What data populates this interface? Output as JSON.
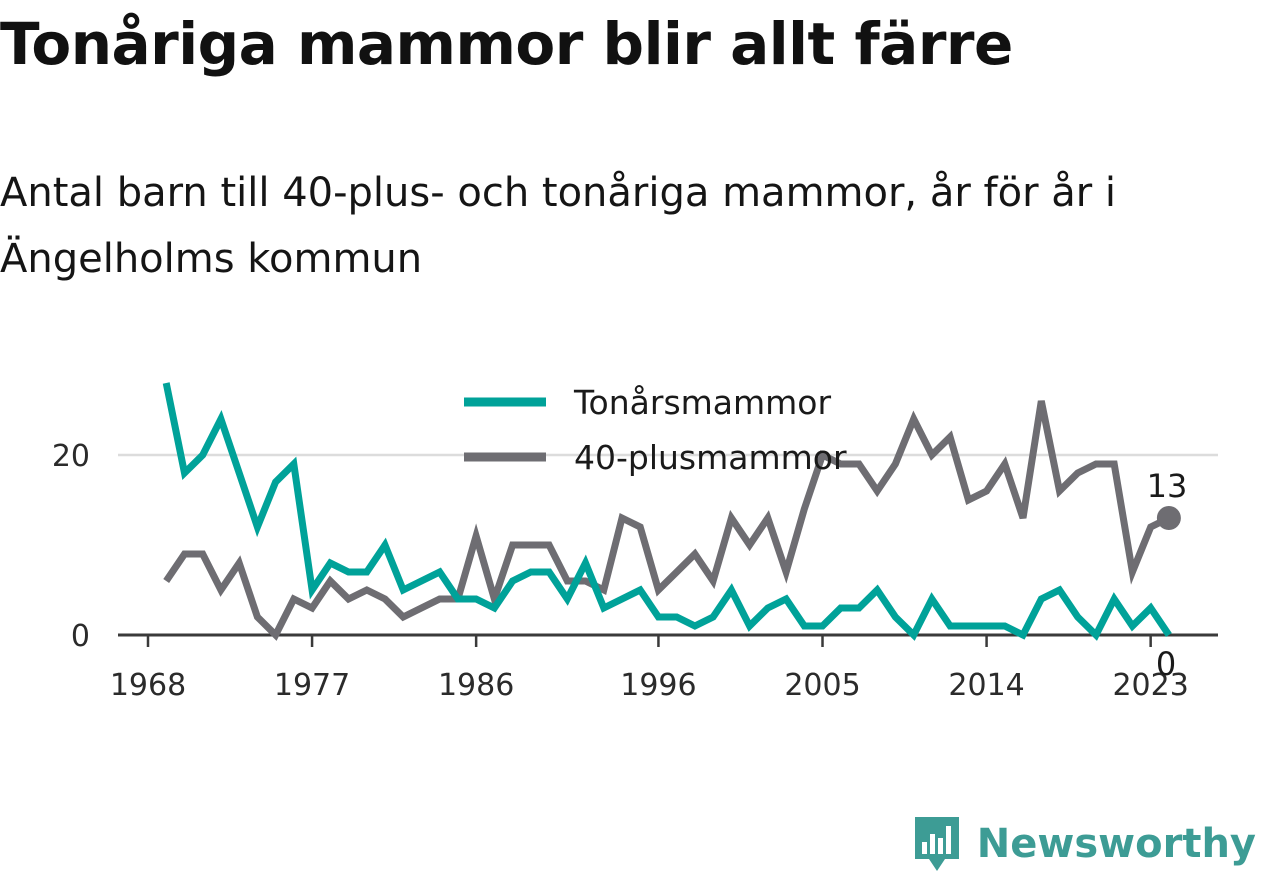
{
  "title": "Tonåriga mammor blir allt färre",
  "subtitle": "Antal barn till 40-plus- och tonåriga mammor, år för år i Ängelholms kommun",
  "brand": {
    "name": "Newsworthy"
  },
  "colors": {
    "teen": "#00a299",
    "forty": "#6e6d72",
    "grid": "#dcdcdc",
    "axis": "#3a3a3a",
    "brand": "#3d9c95"
  },
  "chart_data": {
    "type": "line",
    "x": [
      1969,
      1970,
      1971,
      1972,
      1973,
      1974,
      1975,
      1976,
      1977,
      1978,
      1979,
      1980,
      1981,
      1982,
      1983,
      1984,
      1985,
      1986,
      1987,
      1988,
      1989,
      1990,
      1991,
      1992,
      1993,
      1994,
      1995,
      1996,
      1997,
      1998,
      1999,
      2000,
      2001,
      2002,
      2003,
      2004,
      2005,
      2006,
      2007,
      2008,
      2009,
      2010,
      2011,
      2012,
      2013,
      2014,
      2015,
      2016,
      2017,
      2018,
      2019,
      2020,
      2021,
      2022,
      2023,
      2024
    ],
    "series": [
      {
        "name": "Tonårsmammor",
        "values": [
          28,
          18,
          20,
          24,
          18,
          12,
          17,
          19,
          5,
          8,
          7,
          7,
          10,
          5,
          6,
          7,
          4,
          4,
          3,
          6,
          7,
          7,
          4,
          8,
          3,
          4,
          5,
          2,
          2,
          1,
          2,
          5,
          1,
          3,
          4,
          1,
          1,
          3,
          3,
          5,
          2,
          0,
          4,
          1,
          1,
          1,
          1,
          0,
          4,
          5,
          2,
          0,
          4,
          1,
          3,
          0
        ]
      },
      {
        "name": "40-plusmammor",
        "values": [
          6,
          9,
          9,
          5,
          8,
          2,
          0,
          4,
          3,
          6,
          4,
          5,
          4,
          2,
          3,
          4,
          4,
          11,
          4,
          10,
          10,
          10,
          6,
          6,
          5,
          13,
          12,
          5,
          7,
          9,
          6,
          13,
          10,
          13,
          7,
          14,
          20,
          19,
          19,
          16,
          19,
          24,
          20,
          22,
          15,
          16,
          19,
          13,
          26,
          16,
          18,
          19,
          19,
          7,
          12,
          13
        ]
      }
    ],
    "x_ticks": [
      "1968",
      "1977",
      "1986",
      "1996",
      "2005",
      "2014",
      "2023"
    ],
    "y_ticks": [
      "0",
      "20"
    ],
    "xlim": [
      1968,
      2027
    ],
    "ylim": [
      0,
      30
    ],
    "grid": true,
    "legend": "top-center",
    "end_labels": {
      "teen": "0",
      "forty": "13"
    }
  }
}
